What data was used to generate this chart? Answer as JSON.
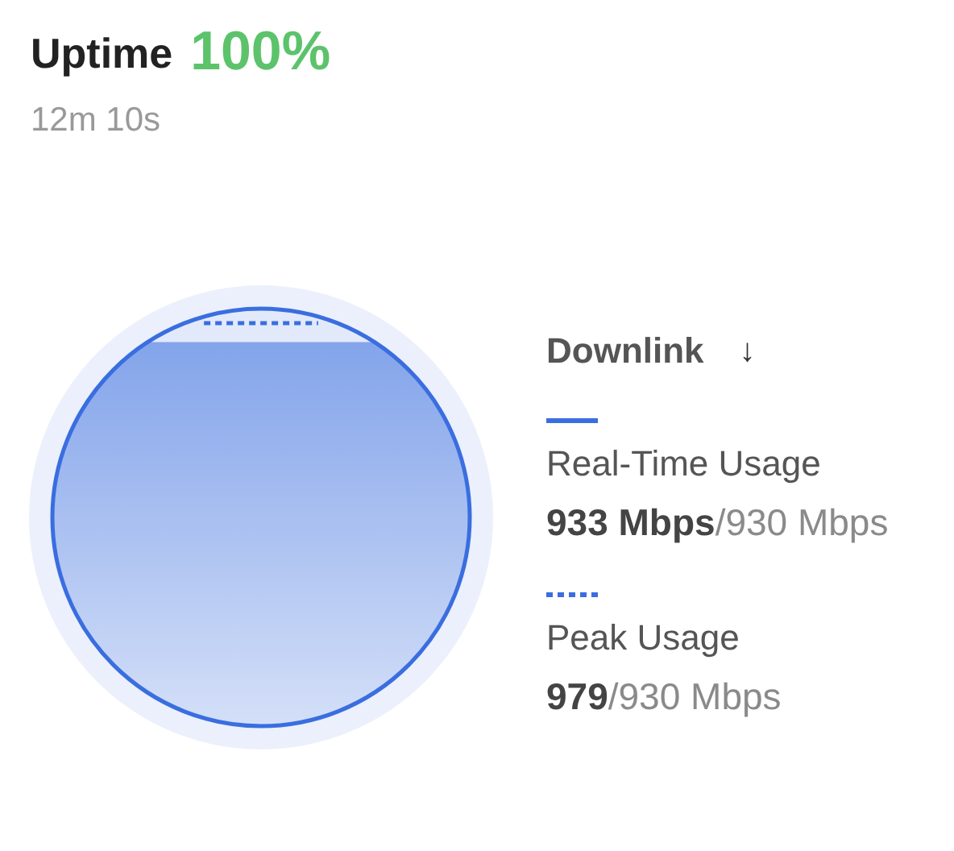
{
  "chart_data": {
    "type": "other",
    "title": "Uptime",
    "subtitle": "12m 10s",
    "legend_title": "Downlink ↓",
    "legend": "right",
    "series": [
      {
        "name": "Real-Time Usage",
        "color": "#3a6ee0",
        "line_style": "solid",
        "values": [
          933
        ],
        "value_labels": [
          "933 Mbps/930 Mbps"
        ]
      },
      {
        "name": "Peak Usage",
        "color": "#3a6ee0",
        "line_style": "dotted",
        "values": [
          979
        ],
        "value_labels": [
          "979/930 Mbps"
        ]
      }
    ],
    "annotations": [
      "100%"
    ]
  }
}
